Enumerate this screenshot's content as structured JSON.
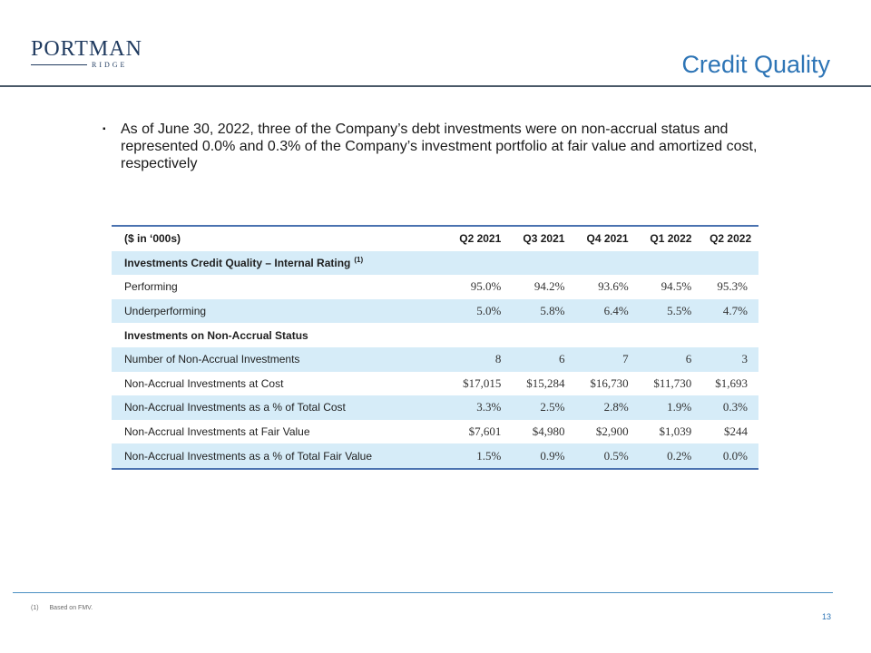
{
  "logo": {
    "main": "PORTMAN",
    "sub": "RIDGE"
  },
  "title": "Credit Quality",
  "bullet_mark": "▪",
  "bullet": "As of June 30, 2022, three of the Company’s debt investments were on non-accrual status and represented 0.0% and 0.3% of the Company’s investment portfolio at fair value and amortized cost, respectively",
  "table": {
    "header_label": "($ in ‘000s)",
    "columns": [
      "Q2 2021",
      "Q3 2021",
      "Q4 2021",
      "Q1 2022",
      "Q2 2022"
    ],
    "section1": {
      "label": "Investments Credit Quality – Internal Rating",
      "footnote_ref": "(1)"
    },
    "rows1": [
      {
        "label": "Performing",
        "values": [
          "95.0%",
          "94.2%",
          "93.6%",
          "94.5%",
          "95.3%"
        ]
      },
      {
        "label": "Underperforming",
        "values": [
          "5.0%",
          "5.8%",
          "6.4%",
          "5.5%",
          "4.7%"
        ]
      }
    ],
    "section2": {
      "label": "Investments on Non-Accrual Status"
    },
    "rows2": [
      {
        "label": "Number of Non-Accrual Investments",
        "values": [
          "8",
          "6",
          "7",
          "6",
          "3"
        ]
      },
      {
        "label": "Non-Accrual Investments at Cost",
        "values": [
          "$17,015",
          "$15,284",
          "$16,730",
          "$11,730",
          "$1,693"
        ]
      },
      {
        "label": "Non-Accrual Investments as a % of Total Cost",
        "values": [
          "3.3%",
          "2.5%",
          "2.8%",
          "1.9%",
          "0.3%"
        ]
      },
      {
        "label": "Non-Accrual Investments at Fair Value",
        "values": [
          "$7,601",
          "$4,980",
          "$2,900",
          "$1,039",
          "$244"
        ]
      },
      {
        "label": "Non-Accrual Investments as a % of Total Fair Value",
        "values": [
          "1.5%",
          "0.9%",
          "0.5%",
          "0.2%",
          "0.0%"
        ]
      }
    ]
  },
  "footnote": {
    "num": "(1)",
    "text": "Based on FMV."
  },
  "page_number": "13",
  "colors": {
    "title_blue": "#2e75b6",
    "navy": "#1f3a5f",
    "row_shade": "#d6ecf8",
    "table_rule": "#4a72b0"
  }
}
